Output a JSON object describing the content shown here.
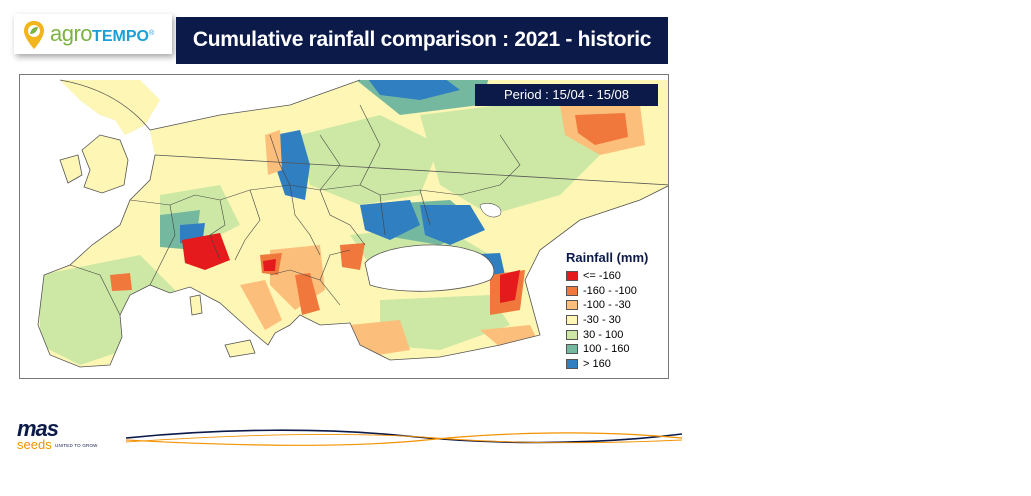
{
  "brand": {
    "logo_part1": "agro",
    "logo_part2": "TEMPO",
    "logo_reg": "®",
    "footer_logo_word": "mas",
    "footer_logo_sub": "seeds",
    "footer_tagline": "UNITED TO GROW"
  },
  "header": {
    "title": "Cumulative rainfall comparison : 2021 - historic"
  },
  "map": {
    "period_label": "Period : 15/04 - 15/08",
    "legend": {
      "title": "Rainfall (mm)",
      "items": [
        {
          "label": "<= -160",
          "color": "#e41a1c"
        },
        {
          "label": "-160 - -100",
          "color": "#f0783c"
        },
        {
          "label": "-100 - -30",
          "color": "#fcbf7b"
        },
        {
          "label": "-30 - 30",
          "color": "#fdf6b4"
        },
        {
          "label": "30 - 100",
          "color": "#cde8a4"
        },
        {
          "label": "100 - 160",
          "color": "#75b8a0"
        },
        {
          "label": "> 160",
          "color": "#2f7fc1"
        }
      ]
    }
  },
  "colors": {
    "navy": "#0c1a4a",
    "orange": "#f39200",
    "sea": "#ffffff",
    "border": "#555555"
  }
}
